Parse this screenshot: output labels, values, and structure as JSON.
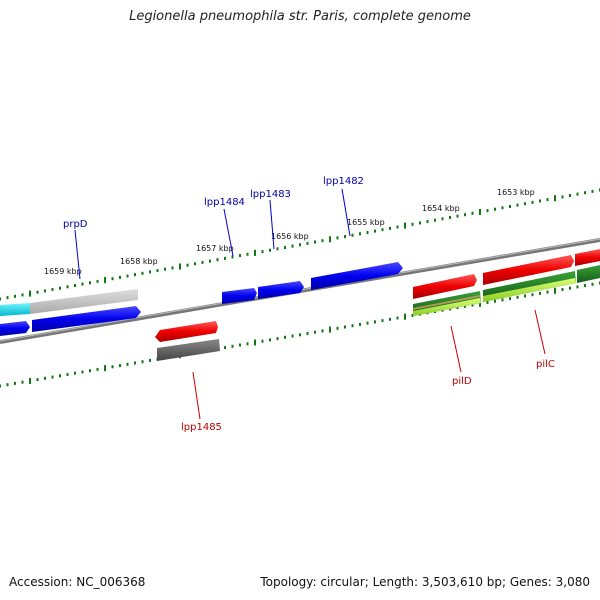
{
  "title": "Legionella pneumophila str. Paris, complete genome",
  "footer": {
    "accession": "Accession: NC_006368",
    "summary": "Topology: circular; Length: 3,503,610 bp; Genes: 3,080"
  },
  "colors": {
    "blue": "#0000ee",
    "red": "#ee0000",
    "darkgreen": "#1a7a1a",
    "lime": "#aaee33",
    "cyan": "#00d8e8",
    "gray": "#bbbbbb",
    "darkgray": "#555555",
    "tick": "#117711"
  },
  "scale_labels": [
    "1659 kbp",
    "1658 kbp",
    "1657 kbp",
    "1656 kbp",
    "1655 kbp",
    "1654 kbp",
    "1653 kbp"
  ],
  "gene_labels": [
    {
      "name": "prpD",
      "color": "#0000aa"
    },
    {
      "name": "lpp1484",
      "color": "#0000aa"
    },
    {
      "name": "lpp1483",
      "color": "#0000aa"
    },
    {
      "name": "lpp1482",
      "color": "#0000aa"
    },
    {
      "name": "lpp1485",
      "color": "#bb0000"
    },
    {
      "name": "pilD",
      "color": "#bb0000"
    },
    {
      "name": "pilC",
      "color": "#bb0000"
    }
  ]
}
